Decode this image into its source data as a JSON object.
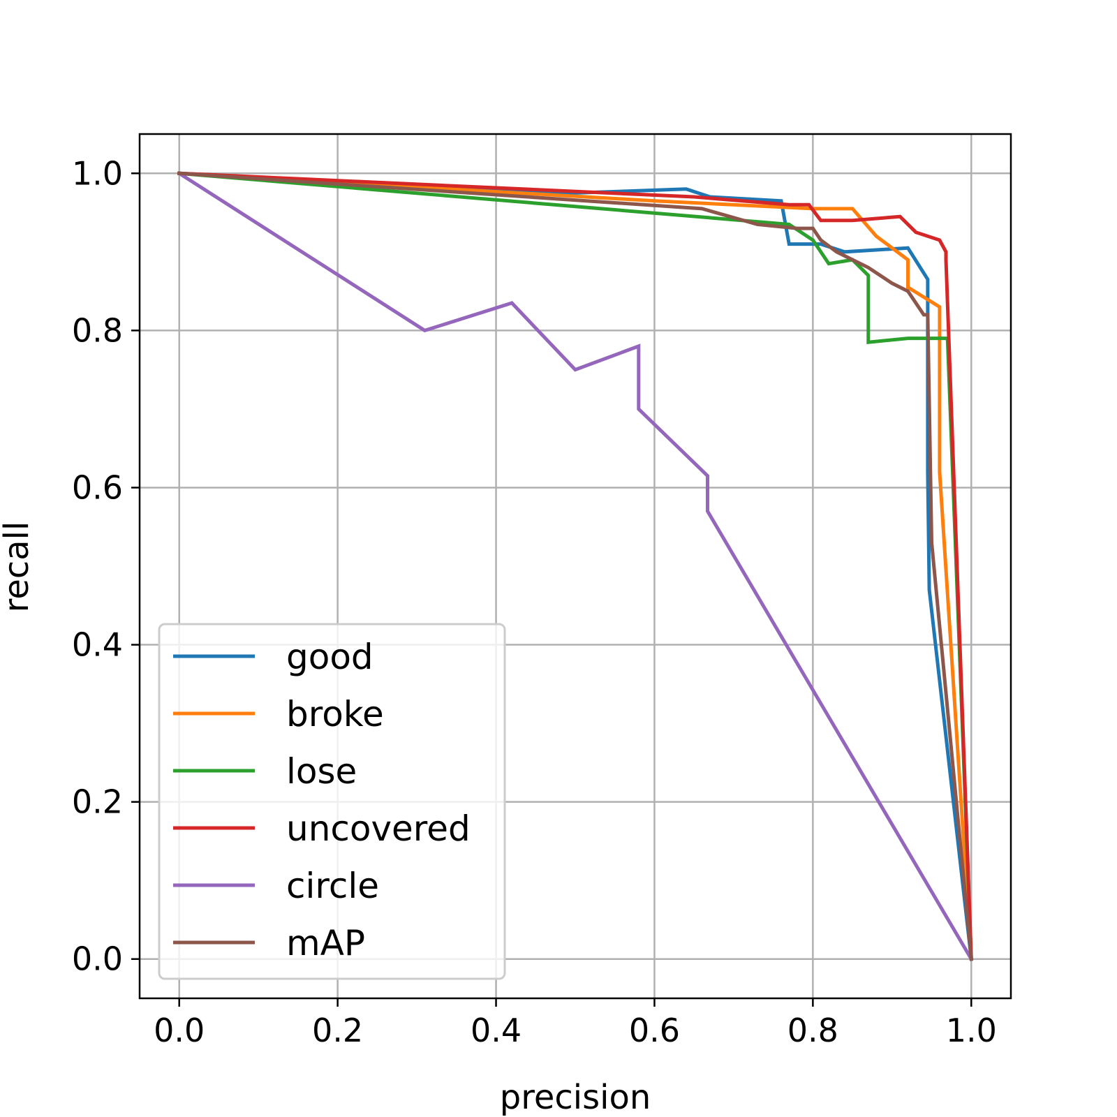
{
  "chart_data": {
    "type": "line",
    "xlabel": "precision",
    "ylabel": "recall",
    "xlim": [
      -0.05,
      1.05
    ],
    "ylim": [
      -0.05,
      1.05
    ],
    "xticks": [
      0.0,
      0.2,
      0.4,
      0.6,
      0.8,
      1.0
    ],
    "xtick_labels": [
      "0.0",
      "0.2",
      "0.4",
      "0.6",
      "0.8",
      "1.0"
    ],
    "yticks": [
      0.0,
      0.2,
      0.4,
      0.6,
      0.8,
      1.0
    ],
    "ytick_labels": [
      "0.0",
      "0.2",
      "0.4",
      "0.6",
      "0.8",
      "1.0"
    ],
    "grid": true,
    "legend_position": "lower-left",
    "series": [
      {
        "name": "good",
        "color": "#1f77b4",
        "x": [
          0.0,
          0.5,
          0.64,
          0.67,
          0.76,
          0.77,
          0.81,
          0.84,
          0.92,
          0.945,
          0.945,
          0.947,
          1.0
        ],
        "y": [
          1.0,
          0.975,
          0.98,
          0.97,
          0.965,
          0.91,
          0.91,
          0.9,
          0.905,
          0.865,
          0.62,
          0.47,
          0.0
        ]
      },
      {
        "name": "broke",
        "color": "#ff7f0e",
        "x": [
          0.0,
          0.6,
          0.8,
          0.82,
          0.85,
          0.88,
          0.92,
          0.92,
          0.96,
          0.96,
          1.0
        ],
        "y": [
          1.0,
          0.965,
          0.955,
          0.955,
          0.955,
          0.92,
          0.89,
          0.855,
          0.83,
          0.62,
          0.0
        ]
      },
      {
        "name": "lose",
        "color": "#2ca02c",
        "x": [
          0.0,
          0.77,
          0.8,
          0.82,
          0.85,
          0.87,
          0.87,
          0.92,
          0.97,
          1.0
        ],
        "y": [
          1.0,
          0.935,
          0.915,
          0.885,
          0.89,
          0.87,
          0.785,
          0.79,
          0.79,
          0.0
        ]
      },
      {
        "name": "uncovered",
        "color": "#d62728",
        "x": [
          0.0,
          0.65,
          0.77,
          0.795,
          0.81,
          0.85,
          0.91,
          0.93,
          0.96,
          0.968,
          0.968,
          1.0
        ],
        "y": [
          1.0,
          0.97,
          0.96,
          0.96,
          0.94,
          0.94,
          0.945,
          0.925,
          0.915,
          0.9,
          0.89,
          0.0
        ]
      },
      {
        "name": "circle",
        "color": "#9467bd",
        "x": [
          0.0,
          0.31,
          0.42,
          0.5,
          0.58,
          0.58,
          0.667,
          0.667,
          1.0
        ],
        "y": [
          1.0,
          0.8,
          0.835,
          0.75,
          0.78,
          0.7,
          0.615,
          0.57,
          0.0
        ]
      },
      {
        "name": "mAP",
        "color": "#8c564b",
        "x": [
          0.0,
          0.66,
          0.73,
          0.78,
          0.8,
          0.81,
          0.83,
          0.87,
          0.9,
          0.92,
          0.94,
          0.945,
          0.95,
          1.0
        ],
        "y": [
          1.0,
          0.955,
          0.935,
          0.93,
          0.93,
          0.915,
          0.9,
          0.88,
          0.86,
          0.85,
          0.82,
          0.82,
          0.53,
          0.0
        ]
      }
    ]
  }
}
